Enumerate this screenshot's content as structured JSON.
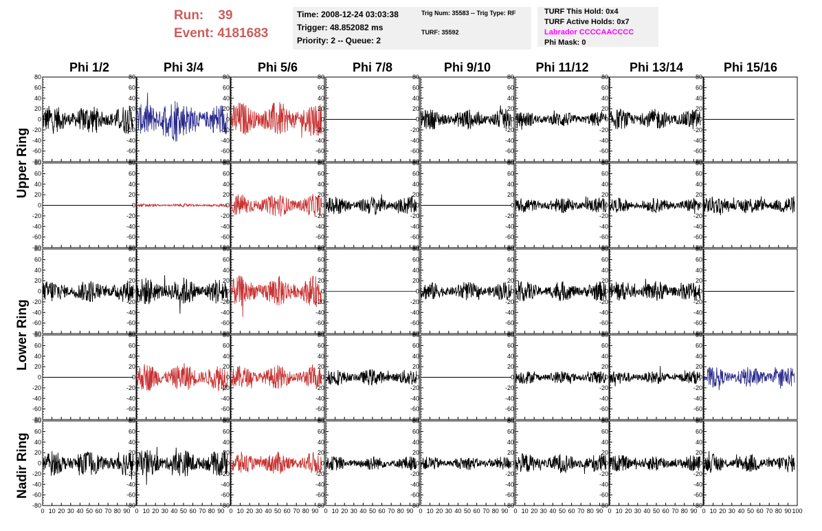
{
  "header": {
    "run_label": "Run:",
    "run_value": "39",
    "event_label": "Event:",
    "event_value": "4181683",
    "time_line": "Time: 2008-12-24 03:03:38",
    "trigger_line": "Trigger: 48.852082 ms",
    "priority_line": "Priority: 2 -- Queue: 2",
    "trig_line": "Trig Num: 35583 -- Trig Type: RF",
    "turf_line": "TURF: 35592",
    "hold_line": "TURF This Hold: 0x4",
    "active_holds_line": "TURF Active Holds: 0x7",
    "labrador_line": "Labrador CCCCAACCCC",
    "phi_mask_line": "Phi Mask: 0",
    "colors": {
      "run": "#cd5c5c",
      "labrador": "#ff00ff",
      "box_bg": "#f0f0f0"
    }
  },
  "chart_data": {
    "type": "line",
    "columns": [
      "Phi 1/2",
      "Phi 3/4",
      "Phi 5/6",
      "Phi 7/8",
      "Phi 9/10",
      "Phi 11/12",
      "Phi 13/14",
      "Phi 15/16"
    ],
    "ring_labels": [
      "Upper Ring",
      "Lower Ring",
      "Nadir Ring"
    ],
    "xlim": [
      0,
      100
    ],
    "ylim": [
      -80,
      80
    ],
    "y_ticks": [
      -80,
      -60,
      -40,
      -20,
      0,
      20,
      40,
      60,
      80
    ],
    "x_ticks": [
      0,
      10,
      20,
      30,
      40,
      50,
      60,
      70,
      80,
      90,
      100
    ],
    "trace_colors": {
      "black": "#000000",
      "blue": "#2b2b8c",
      "red": "#c83232"
    },
    "rows": [
      {
        "traces": [
          {
            "color": "black",
            "amp": 28,
            "flat": false
          },
          {
            "color": "blue",
            "amp": 32,
            "flat": false
          },
          {
            "color": "red",
            "amp": 34,
            "flat": false
          },
          {
            "color": "black",
            "amp": 0,
            "flat": true
          },
          {
            "color": "black",
            "amp": 20,
            "flat": false
          },
          {
            "color": "black",
            "amp": 15,
            "flat": false
          },
          {
            "color": "black",
            "amp": 20,
            "flat": false
          },
          {
            "color": "black",
            "amp": 0,
            "flat": true
          }
        ]
      },
      {
        "traces": [
          {
            "color": "black",
            "amp": 0,
            "flat": true
          },
          {
            "color": "red",
            "amp": 3,
            "flat": false
          },
          {
            "color": "red",
            "amp": 22,
            "flat": false
          },
          {
            "color": "black",
            "amp": 18,
            "flat": false
          },
          {
            "color": "black",
            "amp": 0,
            "flat": true
          },
          {
            "color": "black",
            "amp": 15,
            "flat": false
          },
          {
            "color": "black",
            "amp": 14,
            "flat": false
          },
          {
            "color": "black",
            "amp": 17,
            "flat": false
          }
        ]
      },
      {
        "traces": [
          {
            "color": "black",
            "amp": 22,
            "flat": false
          },
          {
            "color": "black",
            "amp": 27,
            "flat": false
          },
          {
            "color": "red",
            "amp": 30,
            "flat": false
          },
          {
            "color": "blue",
            "amp": 0,
            "flat": true
          },
          {
            "color": "black",
            "amp": 18,
            "flat": false
          },
          {
            "color": "black",
            "amp": 19,
            "flat": false
          },
          {
            "color": "black",
            "amp": 20,
            "flat": false
          },
          {
            "color": "black",
            "amp": 0,
            "flat": true
          }
        ]
      },
      {
        "traces": [
          {
            "color": "black",
            "amp": 0,
            "flat": true
          },
          {
            "color": "red",
            "amp": 27,
            "flat": false
          },
          {
            "color": "red",
            "amp": 22,
            "flat": false
          },
          {
            "color": "black",
            "amp": 16,
            "flat": false
          },
          {
            "color": "black",
            "amp": 0,
            "flat": true
          },
          {
            "color": "black",
            "amp": 13,
            "flat": false
          },
          {
            "color": "black",
            "amp": 13,
            "flat": false
          },
          {
            "color": "blue",
            "amp": 20,
            "flat": false
          }
        ]
      },
      {
        "traces": [
          {
            "color": "black",
            "amp": 24,
            "flat": false
          },
          {
            "color": "black",
            "amp": 26,
            "flat": false
          },
          {
            "color": "red",
            "amp": 22,
            "flat": false
          },
          {
            "color": "black",
            "amp": 14,
            "flat": false
          },
          {
            "color": "black",
            "amp": 13,
            "flat": false
          },
          {
            "color": "black",
            "amp": 19,
            "flat": false
          },
          {
            "color": "black",
            "amp": 16,
            "flat": false
          },
          {
            "color": "black",
            "amp": 18,
            "flat": false
          }
        ]
      }
    ]
  }
}
